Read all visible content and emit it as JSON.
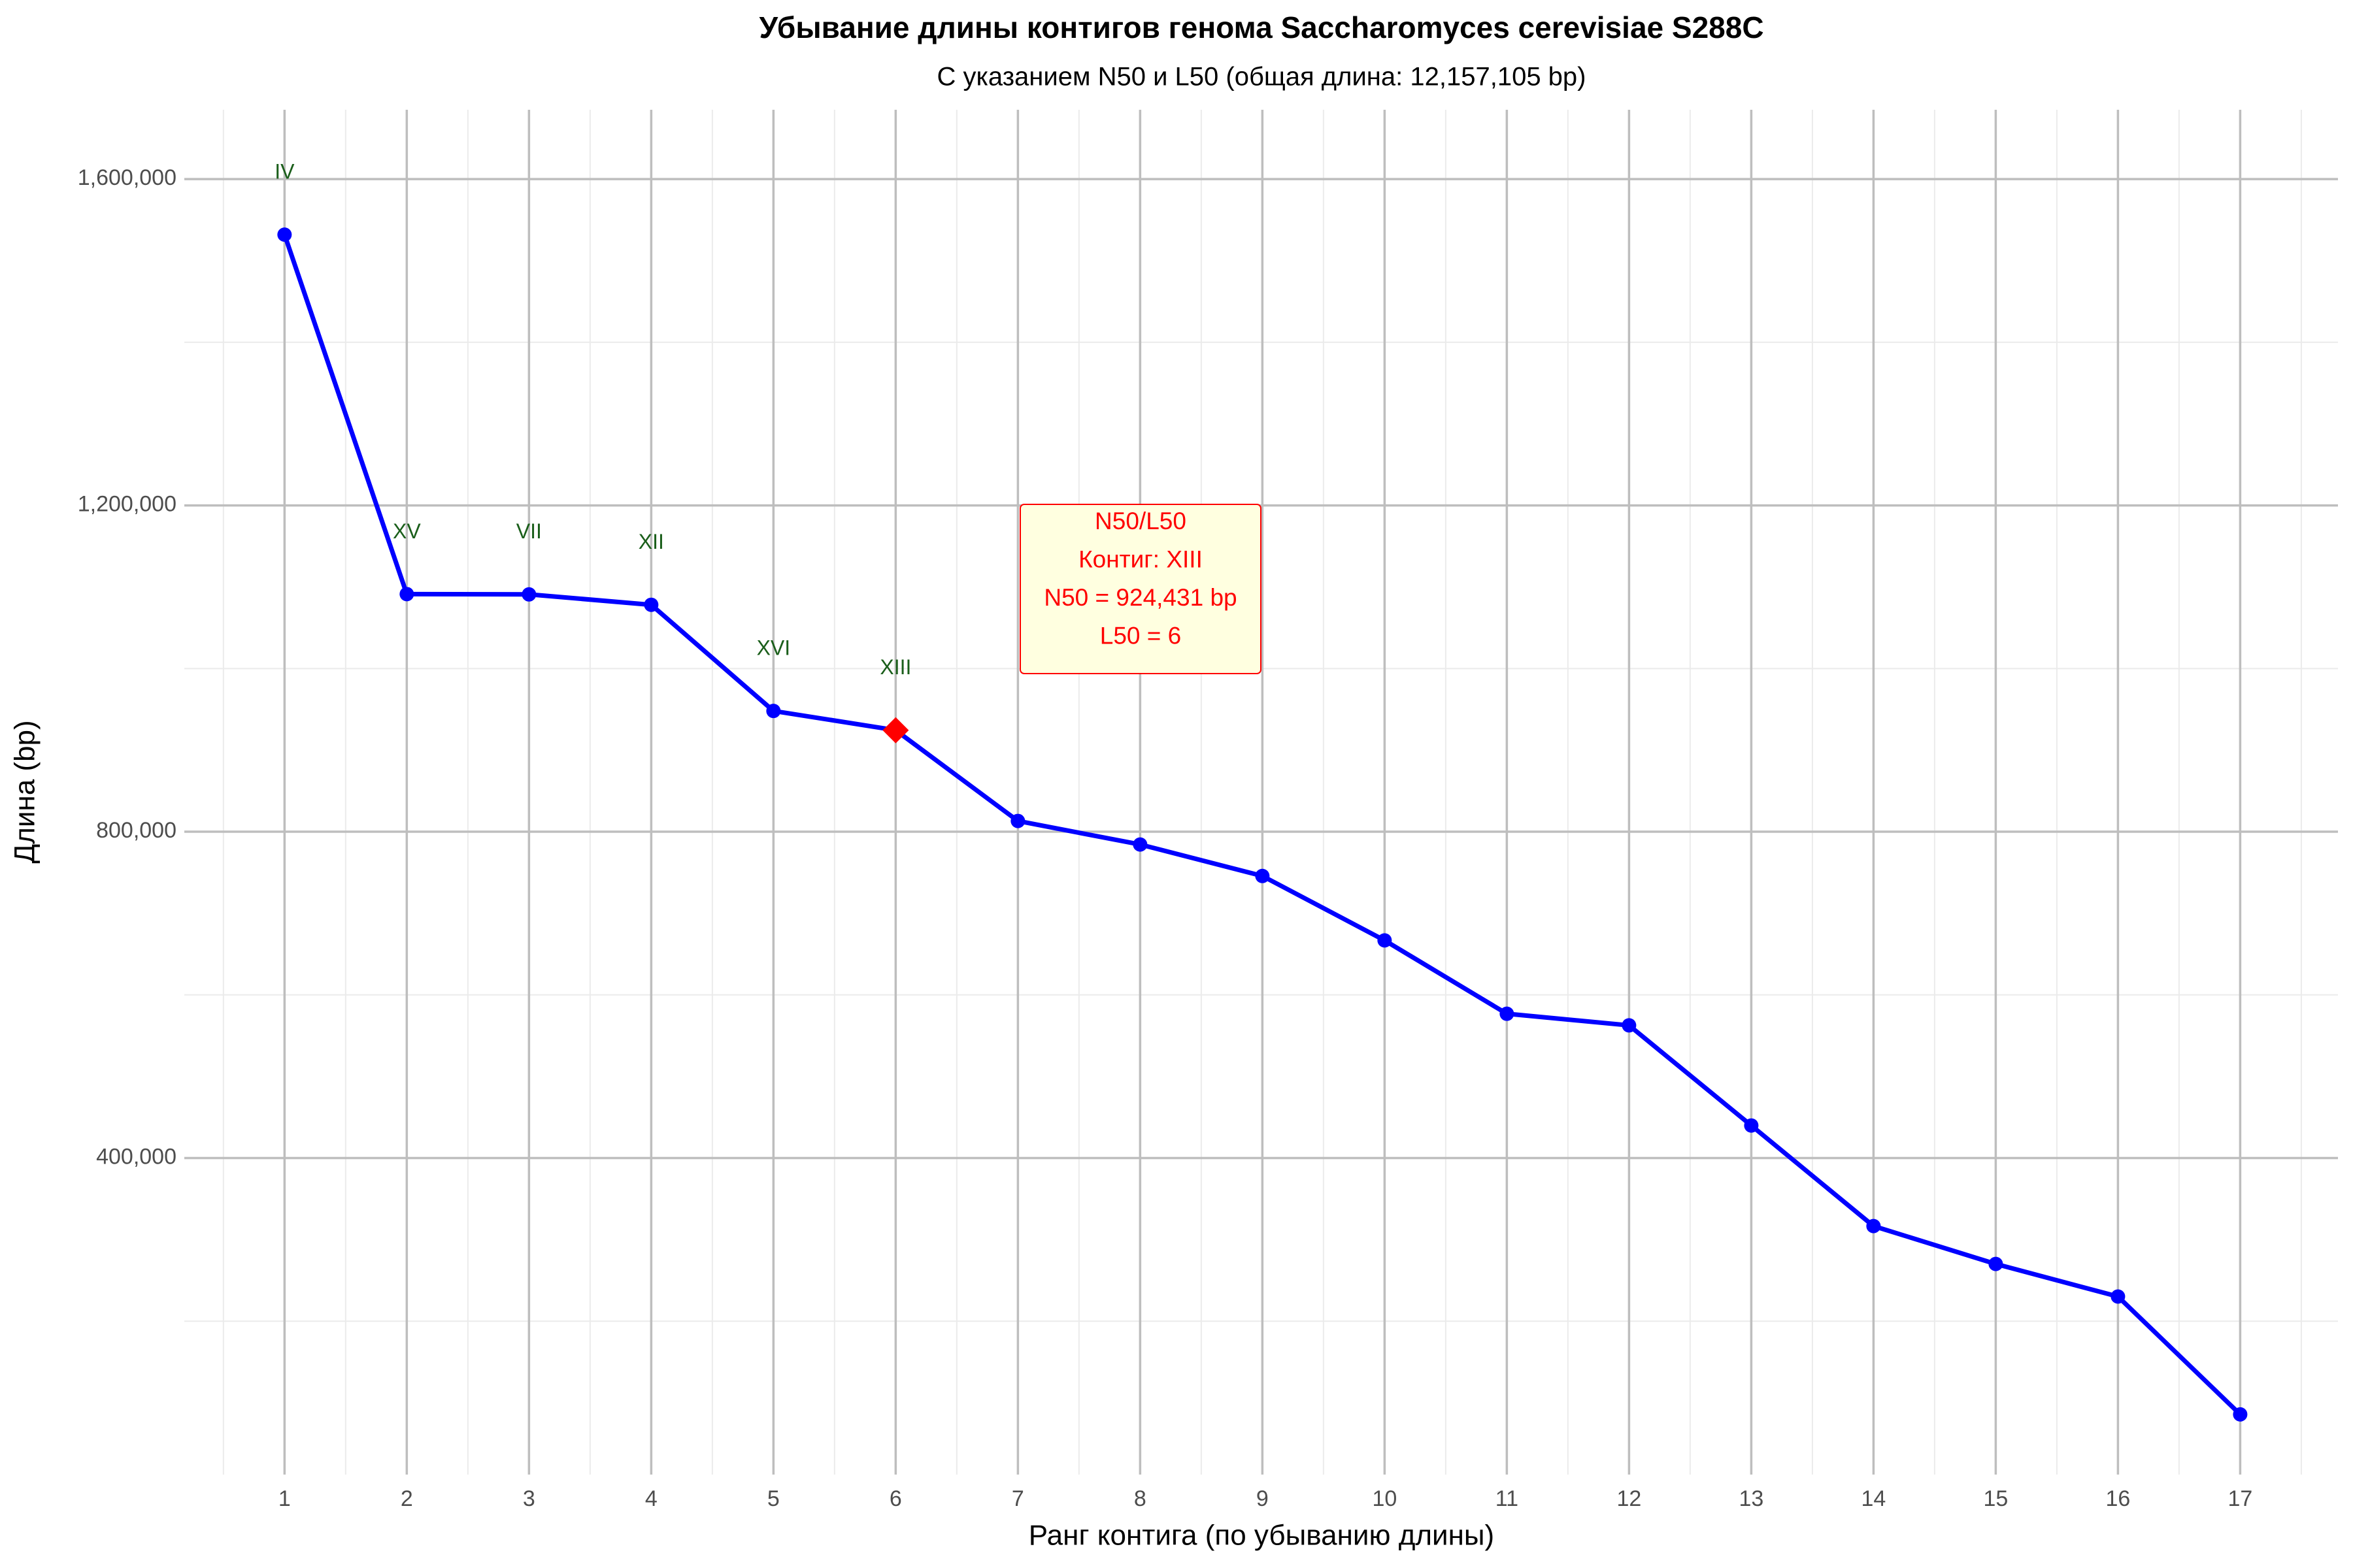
{
  "chart_data": {
    "type": "line",
    "title": "Убывание длины контигов генома Saccharomyces cerevisiae S288C",
    "subtitle": "С указанием N50 и L50 (общая длина: 12,157,105 bp)",
    "x_label": "Ранг контига (по убыванию длины)",
    "y_label": "Длина (bp)",
    "x": [
      1,
      2,
      3,
      4,
      5,
      6,
      7,
      8,
      9,
      10,
      11,
      12,
      13,
      14,
      15,
      16,
      17
    ],
    "series": [
      {
        "name": "Длина контига",
        "color": "#0000ff",
        "values": [
          1531933,
          1091291,
          1090940,
          1078177,
          948066,
          924431,
          813184,
          784333,
          745751,
          666816,
          576874,
          562643,
          439888,
          316620,
          270161,
          230218,
          85779
        ],
        "labels": [
          "IV",
          "XV",
          "VII",
          "XII",
          "XVI",
          "XIII",
          null,
          null,
          null,
          null,
          null,
          null,
          null,
          null,
          null,
          null,
          null
        ],
        "label_color": "#1a5e1a"
      }
    ],
    "highlight": {
      "label": "XIII",
      "color": "#ff0000"
    },
    "annotation": {
      "lines": [
        "N50/L50",
        "Контиг: XIII",
        "N50 = 924,431 bp",
        "L50 = 6"
      ],
      "color": "#ff0000",
      "fill": "#ffffe0"
    },
    "xlim": [
      0.18,
      17.8
    ],
    "xticks": [
      1,
      2,
      3,
      4,
      5,
      6,
      7,
      8,
      9,
      10,
      11,
      12,
      13,
      14,
      15,
      16,
      17
    ],
    "ylim": [
      12000,
      1685000
    ],
    "yticks": [
      {
        "value": 400000,
        "label": "400,000"
      },
      {
        "value": 800000,
        "label": "800,000"
      },
      {
        "value": 1200000,
        "label": "1,200,000"
      },
      {
        "value": 1600000,
        "label": "1,600,000"
      }
    ],
    "grid": true
  }
}
